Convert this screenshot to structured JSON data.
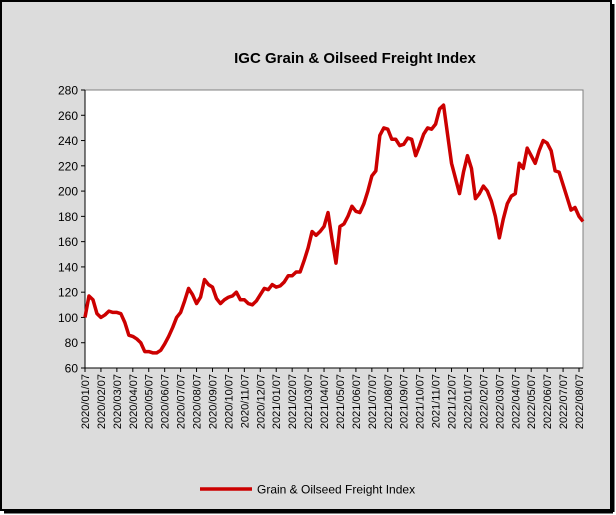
{
  "chart_data": {
    "type": "line",
    "title": "IGC Grain & Oilseed Freight Index",
    "categories": [
      "2020/01/07",
      null,
      null,
      null,
      "2020/02/07",
      null,
      null,
      null,
      "2020/03/07",
      null,
      null,
      null,
      "2020/04/07",
      null,
      null,
      null,
      "2020/05/07",
      null,
      null,
      null,
      "2020/06/07",
      null,
      null,
      null,
      "2020/07/07",
      null,
      null,
      null,
      "2020/08/07",
      null,
      null,
      null,
      "2020/09/07",
      null,
      null,
      null,
      "2020/10/07",
      null,
      null,
      null,
      "2020/11/07",
      null,
      null,
      null,
      "2020/12/07",
      null,
      null,
      null,
      "2021/01/07",
      null,
      null,
      null,
      "2021/02/07",
      null,
      null,
      null,
      "2021/03/07",
      null,
      null,
      null,
      "2021/04/07",
      null,
      null,
      null,
      "2021/05/07",
      null,
      null,
      null,
      "2021/06/07",
      null,
      null,
      null,
      "2021/07/07",
      null,
      null,
      null,
      "2021/08/07",
      null,
      null,
      null,
      "2021/09/07",
      null,
      null,
      null,
      "2021/10/07",
      null,
      null,
      null,
      "2021/11/07",
      null,
      null,
      null,
      "2021/12/07",
      null,
      null,
      null,
      "2022/01/07",
      null,
      null,
      null,
      "2022/02/07",
      null,
      null,
      null,
      "2022/03/07",
      null,
      null,
      null,
      "2022/04/07",
      null,
      null,
      null,
      "2022/05/07",
      null,
      null,
      null,
      "2022/06/07",
      null,
      null,
      null,
      "2022/07/07",
      null,
      null,
      null,
      "2022/08/07",
      null
    ],
    "series": [
      {
        "name": "Grain & Oilseed Freight Index",
        "color": "#cc0000",
        "values": [
          100,
          117,
          114,
          103,
          100,
          102,
          105,
          104,
          104,
          103,
          96,
          86,
          85,
          83,
          80,
          73,
          73,
          72,
          72,
          74,
          79,
          85,
          92,
          100,
          104,
          113,
          123,
          118,
          111,
          116,
          130,
          126,
          124,
          115,
          111,
          114,
          116,
          117,
          120,
          114,
          114,
          111,
          110,
          113,
          118,
          123,
          122,
          126,
          124,
          125,
          128,
          133,
          133,
          136,
          136,
          145,
          155,
          168,
          165,
          168,
          172,
          183,
          162,
          143,
          172,
          174,
          180,
          188,
          184,
          183,
          190,
          200,
          212,
          216,
          244,
          250,
          249,
          241,
          241,
          236,
          237,
          242,
          241,
          228,
          236,
          245,
          250,
          249,
          253,
          265,
          268,
          245,
          222,
          210,
          198,
          215,
          228,
          218,
          194,
          198,
          204,
          200,
          192,
          180,
          163,
          178,
          190,
          196,
          198,
          222,
          218,
          234,
          228,
          222,
          232,
          240,
          238,
          232,
          216,
          215,
          205,
          195,
          185,
          187,
          180,
          176
        ]
      }
    ],
    "ylim": [
      60,
      280
    ],
    "yticks": [
      60,
      80,
      100,
      120,
      140,
      160,
      180,
      200,
      220,
      240,
      260,
      280
    ],
    "grid": false,
    "legend": "bottom"
  }
}
